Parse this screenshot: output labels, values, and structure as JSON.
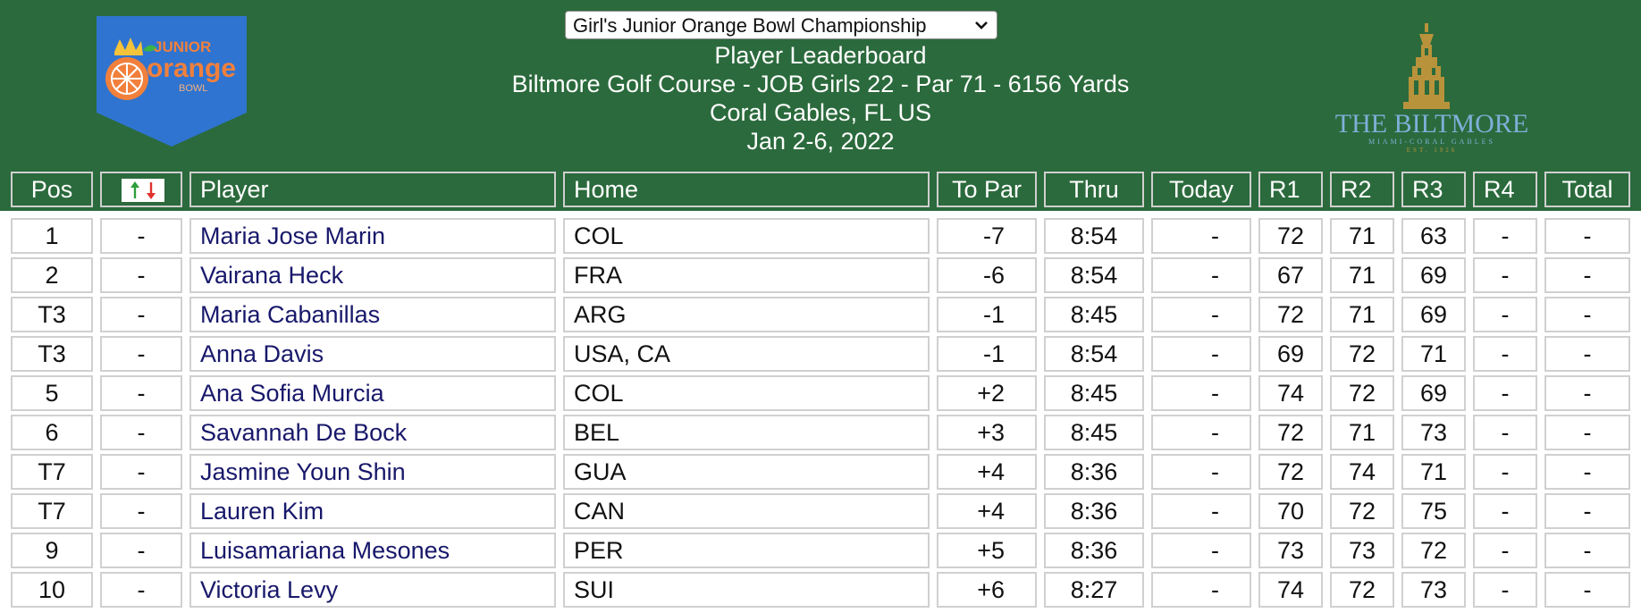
{
  "header": {
    "tournament_select": {
      "selected": "Girl's Junior Orange Bowl Championship"
    },
    "title": "Player Leaderboard",
    "course_line": "Biltmore Golf Course - JOB Girls 22 - Par 71 - 6156 Yards",
    "location": "Coral Gables, FL US",
    "dates": "Jan 2-6, 2022",
    "logo_left": {
      "line1": "JUNIOR",
      "line2": "orange",
      "line3": "BOWL"
    },
    "logo_right": {
      "name": "THE BILTMORE",
      "sub": "MIAMI-CORAL GABLES",
      "est": "EST. 1926"
    }
  },
  "table": {
    "columns": [
      "Pos",
      "",
      "Player",
      "Home",
      "To Par",
      "Thru",
      "Today",
      "R1",
      "R2",
      "R3",
      "R4",
      "Total"
    ],
    "rows": [
      {
        "pos": "1",
        "move": "-",
        "player": "Maria Jose Marin",
        "home": "COL",
        "topar": "-7",
        "thru": "8:54",
        "today": "-",
        "r1": "72",
        "r2": "71",
        "r3": "63",
        "r4": "-",
        "total": "-"
      },
      {
        "pos": "2",
        "move": "-",
        "player": "Vairana Heck",
        "home": "FRA",
        "topar": "-6",
        "thru": "8:54",
        "today": "-",
        "r1": "67",
        "r2": "71",
        "r3": "69",
        "r4": "-",
        "total": "-"
      },
      {
        "pos": "T3",
        "move": "-",
        "player": "Maria Cabanillas",
        "home": "ARG",
        "topar": "-1",
        "thru": "8:45",
        "today": "-",
        "r1": "72",
        "r2": "71",
        "r3": "69",
        "r4": "-",
        "total": "-"
      },
      {
        "pos": "T3",
        "move": "-",
        "player": "Anna Davis",
        "home": "USA, CA",
        "topar": "-1",
        "thru": "8:54",
        "today": "-",
        "r1": "69",
        "r2": "72",
        "r3": "71",
        "r4": "-",
        "total": "-"
      },
      {
        "pos": "5",
        "move": "-",
        "player": "Ana Sofia Murcia",
        "home": "COL",
        "topar": "+2",
        "thru": "8:45",
        "today": "-",
        "r1": "74",
        "r2": "72",
        "r3": "69",
        "r4": "-",
        "total": "-"
      },
      {
        "pos": "6",
        "move": "-",
        "player": "Savannah De Bock",
        "home": "BEL",
        "topar": "+3",
        "thru": "8:45",
        "today": "-",
        "r1": "72",
        "r2": "71",
        "r3": "73",
        "r4": "-",
        "total": "-"
      },
      {
        "pos": "T7",
        "move": "-",
        "player": "Jasmine Youn Shin",
        "home": "GUA",
        "topar": "+4",
        "thru": "8:36",
        "today": "-",
        "r1": "72",
        "r2": "74",
        "r3": "71",
        "r4": "-",
        "total": "-"
      },
      {
        "pos": "T7",
        "move": "-",
        "player": "Lauren Kim",
        "home": "CAN",
        "topar": "+4",
        "thru": "8:36",
        "today": "-",
        "r1": "70",
        "r2": "72",
        "r3": "75",
        "r4": "-",
        "total": "-"
      },
      {
        "pos": "9",
        "move": "-",
        "player": "Luisamariana Mesones",
        "home": "PER",
        "topar": "+5",
        "thru": "8:36",
        "today": "-",
        "r1": "73",
        "r2": "73",
        "r3": "72",
        "r4": "-",
        "total": "-"
      },
      {
        "pos": "10",
        "move": "-",
        "player": "Victoria Levy",
        "home": "SUI",
        "topar": "+6",
        "thru": "8:27",
        "today": "-",
        "r1": "74",
        "r2": "72",
        "r3": "73",
        "r4": "-",
        "total": "-"
      }
    ]
  },
  "colors": {
    "header_green": "#2b6a3c",
    "player_link": "#18186b",
    "arrow_up": "#2e9e3a",
    "arrow_down": "#e0322d",
    "biltmore_gold": "#b8933b",
    "biltmore_blue": "#7db0d8",
    "job_blue": "#2f74d0",
    "job_orange": "#f1803c"
  }
}
